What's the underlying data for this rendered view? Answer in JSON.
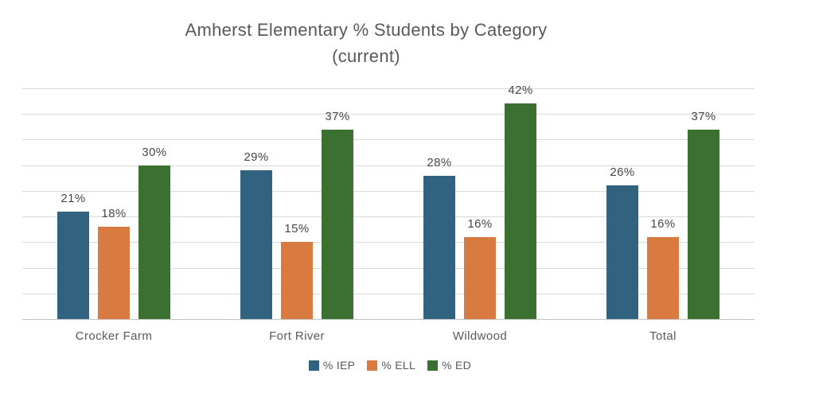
{
  "title": {
    "line1": "Amherst Elementary % Students by Category",
    "line2": "(current)"
  },
  "chart_data": {
    "type": "bar",
    "categories": [
      "Crocker Farm",
      "Fort River",
      "Wildwood",
      "Total"
    ],
    "series": [
      {
        "name": "% IEP",
        "color": "#31627F",
        "values": [
          21,
          29,
          28,
          26
        ]
      },
      {
        "name": "% ELL",
        "color": "#D97B41",
        "values": [
          18,
          15,
          16,
          16
        ]
      },
      {
        "name": "% ED",
        "color": "#3C7030",
        "values": [
          30,
          37,
          42,
          37
        ]
      }
    ],
    "data_label_suffix": "%",
    "ylim": [
      0,
      45
    ],
    "gridline_step": 5,
    "grid": true,
    "legend_position": "bottom",
    "colors": {
      "gridline": "#D9D9D9",
      "axis_line": "#C3C3C3",
      "title_text": "#595959",
      "data_label_text": "#474747",
      "category_text": "#595959",
      "legend_text": "#595959",
      "background": "#FFFFFF"
    }
  }
}
